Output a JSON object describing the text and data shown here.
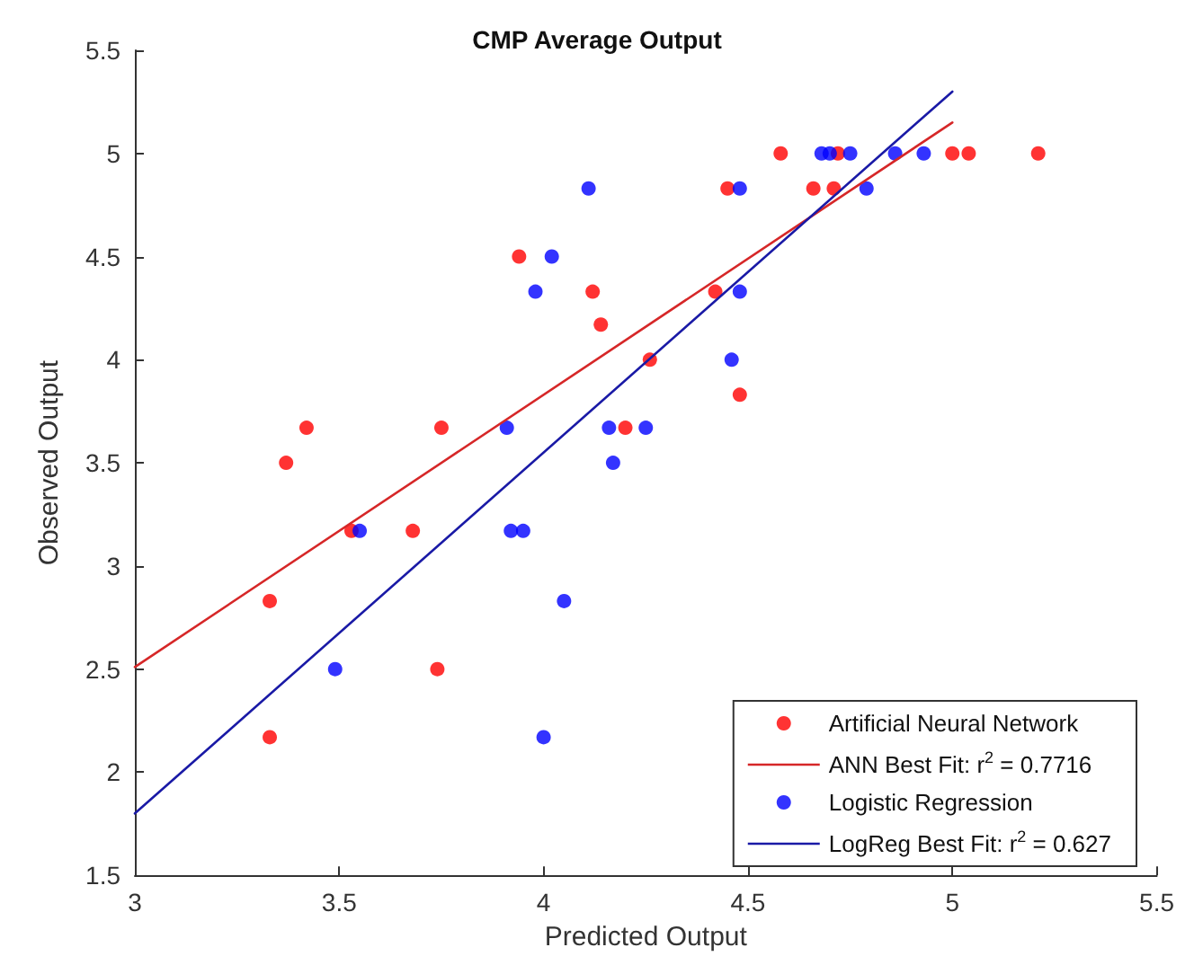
{
  "chart_data": {
    "type": "scatter",
    "title": "CMP Average Output",
    "xlabel": "Predicted Output",
    "ylabel": "Observed Output",
    "xlim": [
      3,
      5.5
    ],
    "xticks": [
      3,
      3.5,
      4,
      4.5,
      5,
      5.5
    ],
    "ylim": [
      1.5,
      5.5
    ],
    "yticks": [
      1.5,
      2,
      2.5,
      3,
      3.5,
      4,
      4.5,
      5,
      5.5
    ],
    "grid": false,
    "legend": "bottom right",
    "marker": "circle",
    "series": [
      {
        "name": "Artificial Neural Network",
        "color": "#ff0000",
        "x": [
          3.33,
          3.33,
          3.37,
          3.42,
          3.53,
          3.68,
          3.74,
          3.75,
          3.94,
          4.12,
          4.14,
          4.2,
          4.26,
          4.42,
          4.45,
          4.48,
          4.58,
          4.66,
          4.71,
          4.72,
          5.0,
          5.04,
          5.21
        ],
        "values": [
          2.83,
          2.17,
          3.5,
          3.67,
          3.17,
          3.17,
          2.5,
          3.67,
          4.5,
          4.33,
          4.17,
          3.67,
          4,
          4.33,
          4.83,
          3.83,
          5,
          4.83,
          4.83,
          5,
          5,
          5,
          5
        ]
      },
      {
        "name": "ANN Best Fit: r$^{2}$ = 0.7716",
        "type": "line",
        "color": "#d62728",
        "line_style": "solid",
        "marker": "none",
        "x": [
          3,
          5
        ],
        "values": [
          2.51,
          5.15
        ]
      },
      {
        "name": "Logistic Regression",
        "color": "#0000ff",
        "x": [
          3.49,
          3.55,
          3.91,
          3.92,
          3.95,
          3.98,
          4.02,
          4.0,
          4.05,
          4.11,
          4.16,
          4.17,
          4.25,
          4.46,
          4.48,
          4.48,
          4.68,
          4.7,
          4.75,
          4.79,
          4.86,
          4.93
        ],
        "values": [
          2.5,
          3.17,
          3.67,
          3.17,
          3.17,
          4.33,
          4.5,
          2.17,
          2.83,
          4.83,
          3.67,
          3.5,
          3.67,
          4,
          4.33,
          4.83,
          5,
          5,
          5,
          4.83,
          5,
          5
        ]
      },
      {
        "name": "LogReg Best Fit: r$^{2}$ = 0.627",
        "type": "line",
        "color": "#1a1aa6",
        "line_style": "solid",
        "marker": "none",
        "x": [
          3,
          5
        ],
        "values": [
          1.8,
          5.3
        ]
      }
    ]
  }
}
